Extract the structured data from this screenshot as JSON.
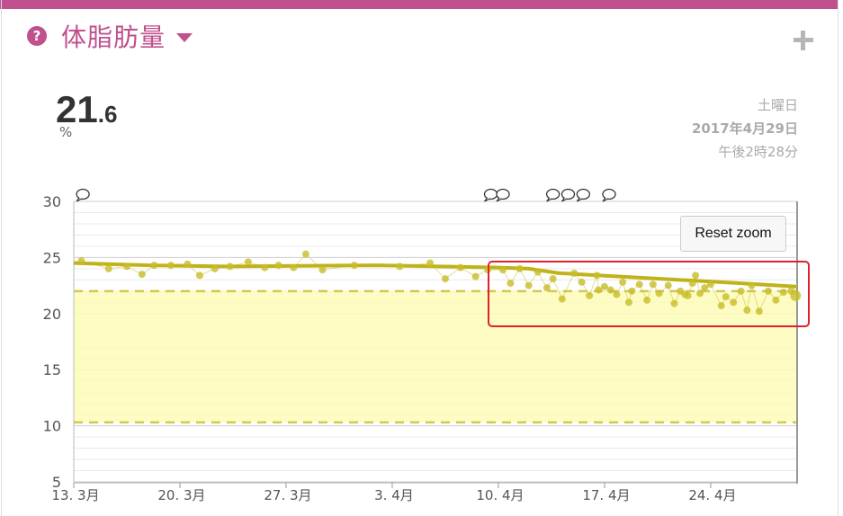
{
  "header": {
    "title": "体脂肪量",
    "help_icon": "question-circle-icon",
    "add_icon": "plus-icon"
  },
  "reading": {
    "value_int": "21",
    "value_dec": ".6",
    "unit": "%"
  },
  "timestamp": {
    "weekday": "土曜日",
    "date": "2017年4月29日",
    "time": "午後2時28分"
  },
  "chart": {
    "reset_label": "Reset zoom"
  },
  "colors": {
    "accent": "#c0508e",
    "series": "#c8bd2a",
    "band": "#fdfbb4",
    "highlight": "#e0202a"
  },
  "chart_data": {
    "type": "scatter",
    "ylim": [
      5,
      30
    ],
    "yticks": [
      "30",
      "25",
      "20",
      "15",
      "10",
      "5"
    ],
    "ytick_values": [
      30,
      25,
      20,
      15,
      10,
      5
    ],
    "xlim": [
      0,
      47.7
    ],
    "xticks": [
      {
        "x": 0,
        "label": "13. 3月"
      },
      {
        "x": 7,
        "label": "20. 3月"
      },
      {
        "x": 14,
        "label": "27. 3月"
      },
      {
        "x": 21,
        "label": "3. 4月"
      },
      {
        "x": 28,
        "label": "10. 4月"
      },
      {
        "x": 35,
        "label": "17. 4月"
      },
      {
        "x": 42,
        "label": "24. 4月"
      }
    ],
    "target_band": [
      10.3,
      22.0
    ],
    "points": [
      [
        0.5,
        24.7
      ],
      [
        2.3,
        24.0
      ],
      [
        3.5,
        24.2
      ],
      [
        4.5,
        23.5
      ],
      [
        5.3,
        24.3
      ],
      [
        6.4,
        24.3
      ],
      [
        7.5,
        24.4
      ],
      [
        8.3,
        23.4
      ],
      [
        9.3,
        24.0
      ],
      [
        10.3,
        24.2
      ],
      [
        11.5,
        24.6
      ],
      [
        12.6,
        24.1
      ],
      [
        13.5,
        24.3
      ],
      [
        14.5,
        24.1
      ],
      [
        15.3,
        25.3
      ],
      [
        16.4,
        23.9
      ],
      [
        18.5,
        24.3
      ],
      [
        21.5,
        24.2
      ],
      [
        23.5,
        24.5
      ],
      [
        24.5,
        23.1
      ],
      [
        25.5,
        24.1
      ],
      [
        26.5,
        23.3
      ],
      [
        27.3,
        23.9
      ],
      [
        28.3,
        23.9
      ],
      [
        28.8,
        22.7
      ],
      [
        29.4,
        24.0
      ],
      [
        30.0,
        22.5
      ],
      [
        30.6,
        23.7
      ],
      [
        31.2,
        22.3
      ],
      [
        31.6,
        23.1
      ],
      [
        32.2,
        21.3
      ],
      [
        33.0,
        23.6
      ],
      [
        33.5,
        22.8
      ],
      [
        34.0,
        21.6
      ],
      [
        34.5,
        23.4
      ],
      [
        34.6,
        22.1
      ],
      [
        35.0,
        22.4
      ],
      [
        35.4,
        22.1
      ],
      [
        35.8,
        21.7
      ],
      [
        36.2,
        22.8
      ],
      [
        36.6,
        21.0
      ],
      [
        36.8,
        22.0
      ],
      [
        37.3,
        22.6
      ],
      [
        37.8,
        21.2
      ],
      [
        38.2,
        22.6
      ],
      [
        38.6,
        21.8
      ],
      [
        39.2,
        22.5
      ],
      [
        39.6,
        20.9
      ],
      [
        40.0,
        22.0
      ],
      [
        40.3,
        21.7
      ],
      [
        40.5,
        21.6
      ],
      [
        40.8,
        22.7
      ],
      [
        41.0,
        23.4
      ],
      [
        41.3,
        21.8
      ],
      [
        41.6,
        22.3
      ],
      [
        42.0,
        22.6
      ],
      [
        42.7,
        20.7
      ],
      [
        43.0,
        21.5
      ],
      [
        43.5,
        21.0
      ],
      [
        44.0,
        22.0
      ],
      [
        44.4,
        20.3
      ],
      [
        44.7,
        22.5
      ],
      [
        45.2,
        20.2
      ],
      [
        45.8,
        22.0
      ],
      [
        46.3,
        21.2
      ],
      [
        46.8,
        21.9
      ],
      [
        47.3,
        22.0
      ],
      [
        47.6,
        21.6
      ]
    ],
    "trend": [
      [
        0,
        24.5
      ],
      [
        5,
        24.3
      ],
      [
        10,
        24.2
      ],
      [
        20,
        24.3
      ],
      [
        28,
        24.1
      ],
      [
        30,
        24.0
      ],
      [
        32,
        23.6
      ],
      [
        36,
        23.3
      ],
      [
        40,
        23.0
      ],
      [
        44,
        22.7
      ],
      [
        47.7,
        22.4
      ]
    ],
    "annotations": [
      0.6,
      27.5,
      28.3,
      31.6,
      32.6,
      33.6,
      35.3
    ]
  }
}
